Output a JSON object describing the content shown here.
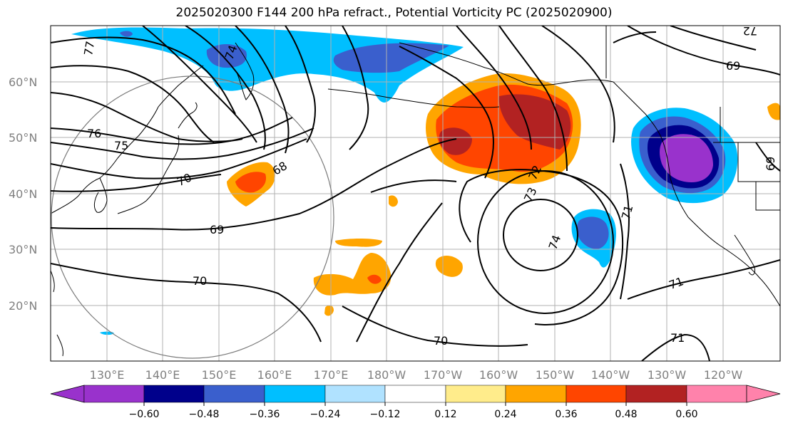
{
  "title": "2025020300 F144 200 hPa refract., Potential Vorticity PC (2025020900)",
  "map": {
    "lat_labels": [
      "60°N",
      "50°N",
      "40°N",
      "30°N",
      "20°N"
    ],
    "lon_labels": [
      "130°E",
      "140°E",
      "150°E",
      "160°E",
      "170°E",
      "180°W",
      "170°W",
      "160°W",
      "150°W",
      "140°W",
      "130°W",
      "120°W"
    ],
    "contour_labels": [
      "77",
      "74",
      "76",
      "75",
      "70",
      "68",
      "69",
      "70",
      "73",
      "72",
      "74",
      "71",
      "71",
      "71",
      "70",
      "69",
      "72",
      "69"
    ],
    "fill_colors": {
      "neg_strong": "#9932CC",
      "neg_dark": "#00008B",
      "neg_mid": "#3A5FCD",
      "neg_light": "#00BFFF",
      "pos_light": "#FFEC8B",
      "pos_mid": "#FFA500",
      "pos_strong": "#FF4500",
      "pos_dark": "#B22222"
    }
  },
  "colorbar": {
    "ticks": [
      "−0.60",
      "−0.48",
      "−0.36",
      "−0.24",
      "−0.12",
      "0.12",
      "0.24",
      "0.36",
      "0.48",
      "0.60"
    ],
    "colors": [
      "#9932CC",
      "#00008B",
      "#3A5FCD",
      "#00BFFF",
      "#B0E2FF",
      "#FFFFFF",
      "#FFEC8B",
      "#FFA500",
      "#FF4500",
      "#B22222",
      "#FF82AB"
    ]
  }
}
